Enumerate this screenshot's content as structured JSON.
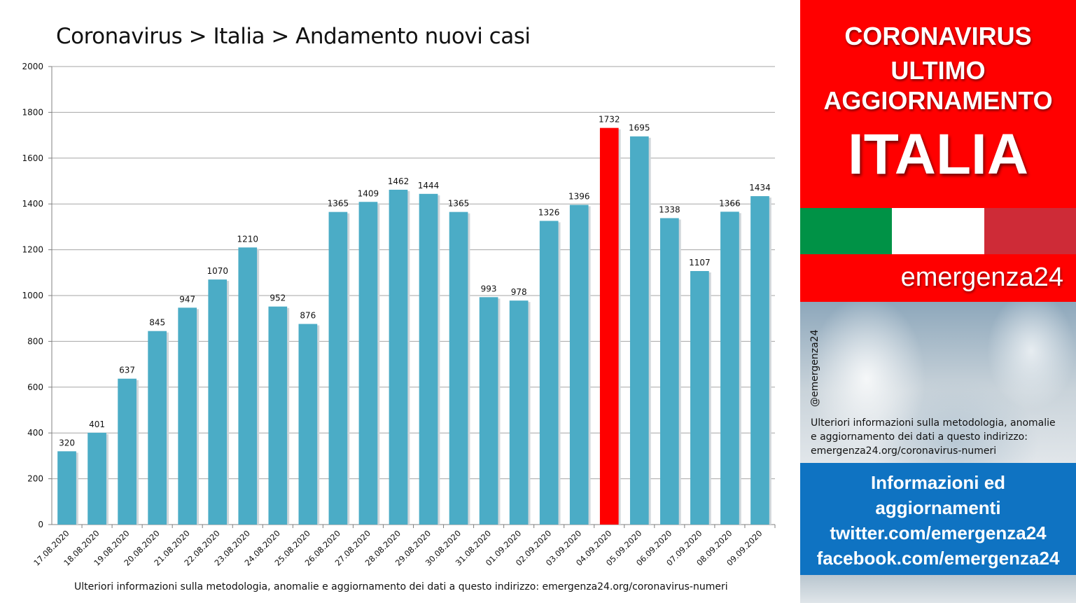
{
  "chart_data": {
    "type": "bar",
    "title": "Coronavirus > Italia > Andamento nuovi casi",
    "categories": [
      "17.08.2020",
      "18.08.2020",
      "19.08.2020",
      "20.08.2020",
      "21.08.2020",
      "22.08.2020",
      "23.08.2020",
      "24.08.2020",
      "25.08.2020",
      "26.08.2020",
      "27.08.2020",
      "28.08.2020",
      "29.08.2020",
      "30.08.2020",
      "31.08.2020",
      "01.09.2020",
      "02.09.2020",
      "03.09.2020",
      "04.09.2020",
      "05.09.2020",
      "06.09.2020",
      "07.09.2020",
      "08.09.2020",
      "09.09.2020"
    ],
    "values": [
      320,
      401,
      637,
      845,
      947,
      1070,
      1210,
      952,
      876,
      1365,
      1409,
      1462,
      1444,
      1365,
      993,
      978,
      1326,
      1396,
      1732,
      1695,
      1338,
      1107,
      1366,
      1434
    ],
    "highlight_index": 18,
    "bar_color": "#4bacc6",
    "highlight_color": "#ff0000",
    "ylim": [
      0,
      2000
    ],
    "yticks": [
      0,
      200,
      400,
      600,
      800,
      1000,
      1200,
      1400,
      1600,
      1800,
      2000
    ],
    "grid": true,
    "legend": "none"
  },
  "footnote": "Ulteriori informazioni sulla metodologia, anomalie e aggiornamento dei dati a questo indirizzo: emergenza24.org/coronavirus-numeri",
  "sidebar": {
    "header_lines": [
      "CORONAVIRUS",
      "ULTIMO",
      "AGGIORNAMENTO",
      "ITALIA"
    ],
    "brand": "emergenza24",
    "handle": "@emergenza24",
    "note_lines": [
      "Ulteriori informazioni sulla metodologia, anomalie",
      "e aggiornamento dei dati a questo indirizzo:",
      "emergenza24.org/coronavirus-numeri"
    ],
    "info_lines": [
      "Informazioni ed",
      "aggiornamenti",
      "twitter.com/emergenza24",
      "facebook.com/emergenza24"
    ],
    "flag_colors": [
      "#009246",
      "#ffffff",
      "#ce2b37"
    ],
    "header_color": "#ff0000",
    "info_color": "#0f73c2"
  }
}
